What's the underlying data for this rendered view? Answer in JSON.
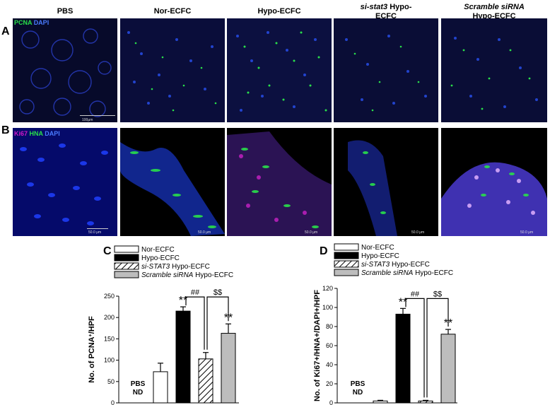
{
  "panel_a": {
    "letter": "A",
    "stain": {
      "marker1": "PCNA",
      "marker2": "DAPI"
    },
    "columns": [
      {
        "line1": "PBS",
        "line2": "",
        "italic": ""
      },
      {
        "line1": "Nor-ECFC",
        "line2": "",
        "italic": ""
      },
      {
        "line1": "Hypo-ECFC",
        "line2": "",
        "italic": ""
      },
      {
        "line1": "Hypo-",
        "line2": "ECFC",
        "italic": "si-stat3"
      },
      {
        "line1": "",
        "line2": "Hypo-ECFC",
        "italic": "Scramble siRNA"
      }
    ],
    "scale_bar": "100μm"
  },
  "panel_b": {
    "letter": "B",
    "stain": {
      "marker1": "Ki67",
      "marker2": "HNA",
      "marker3": "DAPI"
    },
    "scale_labels": [
      "50.0 μm",
      "50.0 μm",
      "50.0 μm",
      "50.0 μm",
      "50.0 μm"
    ]
  },
  "colors": {
    "green": "#29e04a",
    "blue": "#2a55ff",
    "magenta": "#d018c8",
    "dark_bg": "#0a0a24",
    "gray_bar": "#bdbdbd"
  },
  "chart_data": [
    {
      "type": "bar",
      "panel": "C",
      "categories": [
        "PBS",
        "Nor-ECFC",
        "Hypo-ECFC",
        "si-STAT3 Hypo-ECFC",
        "Scramble siRNA Hypo-ECFC"
      ],
      "values": [
        0,
        73,
        215,
        103,
        163
      ],
      "errors": [
        0,
        20,
        10,
        15,
        22
      ],
      "ylabel": "No. of PCNA+/HPF",
      "ylabel_main": "No. of PCNA",
      "ylabel_sup": "+",
      "ylabel_end": "/HPF",
      "ylim": [
        0,
        250
      ],
      "yticks": [
        0,
        50,
        100,
        150,
        200,
        250
      ],
      "nd_label": {
        "line1": "PBS",
        "line2": "ND"
      },
      "stars": [
        {
          "bar": 2,
          "text": "**"
        },
        {
          "bar": 4,
          "text": "**"
        }
      ],
      "brackets": [
        {
          "from": 2,
          "to": 3,
          "text": "##"
        },
        {
          "from": 3,
          "to": 4,
          "text": "$$"
        }
      ],
      "legend": [
        {
          "italic": "",
          "text": "Nor-ECFC",
          "fill": "white"
        },
        {
          "italic": "",
          "text": "Hypo-ECFC",
          "fill": "black"
        },
        {
          "italic": "si-STAT3",
          "text": " Hypo-ECFC",
          "fill": "hatch"
        },
        {
          "italic": "Scramble siRNA",
          "text": "  Hypo-ECFC",
          "fill": "gray"
        }
      ]
    },
    {
      "type": "bar",
      "panel": "D",
      "categories": [
        "PBS",
        "Nor-ECFC",
        "Hypo-ECFC",
        "si-STAT3 Hypo-ECFC",
        "Scramble siRNA Hypo-ECFC"
      ],
      "values": [
        0,
        2,
        93,
        2,
        72
      ],
      "errors": [
        0,
        0.7,
        6,
        0.7,
        5
      ],
      "ylabel": "No. of Ki67+/HNA+/DAPI+/HPF",
      "ylim": [
        0,
        120
      ],
      "yticks": [
        0,
        20,
        40,
        60,
        80,
        100,
        120
      ],
      "nd_label": {
        "line1": "PBS",
        "line2": "ND"
      },
      "stars": [
        {
          "bar": 2,
          "text": "**"
        },
        {
          "bar": 4,
          "text": "**"
        }
      ],
      "brackets": [
        {
          "from": 2,
          "to": 3,
          "text": "##"
        },
        {
          "from": 3,
          "to": 4,
          "text": "$$"
        }
      ],
      "legend": [
        {
          "italic": "",
          "text": "Nor-ECFC",
          "fill": "white"
        },
        {
          "italic": "",
          "text": "Hypo-ECFC",
          "fill": "black"
        },
        {
          "italic": "si-STAT3",
          "text": " Hypo-ECFC",
          "fill": "hatch"
        },
        {
          "italic": "Scramble siRNA",
          "text": "  Hypo-ECFC",
          "fill": "gray"
        }
      ]
    }
  ]
}
